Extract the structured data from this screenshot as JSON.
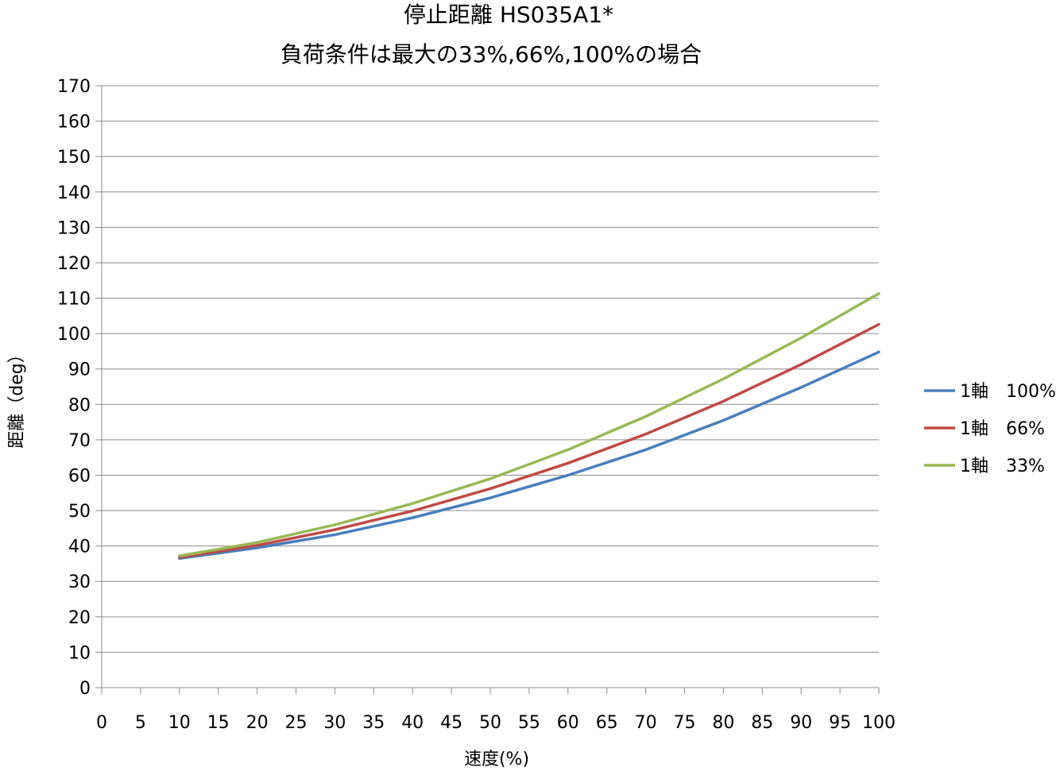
{
  "chart_data": {
    "type": "line",
    "title": "停止距離 HS035A1*",
    "subtitle": "負荷条件は最大の33%,66%,100%の場合",
    "xlabel": "速度(%)",
    "ylabel": "距離（deg）",
    "xlim": [
      0,
      100
    ],
    "ylim": [
      0,
      170
    ],
    "x_ticks": [
      0,
      5,
      10,
      15,
      20,
      25,
      30,
      35,
      40,
      45,
      50,
      55,
      60,
      65,
      70,
      75,
      80,
      85,
      90,
      95,
      100
    ],
    "y_ticks": [
      0,
      10,
      20,
      30,
      40,
      50,
      60,
      70,
      80,
      90,
      100,
      110,
      120,
      130,
      140,
      150,
      160,
      170
    ],
    "grid": "horizontal",
    "legend_position": "right",
    "x": [
      10,
      20,
      30,
      40,
      50,
      60,
      70,
      80,
      90,
      100
    ],
    "series": [
      {
        "name": "1軸　100%",
        "color": "#4a7ebb",
        "values": [
          36.5,
          39.5,
          43.2,
          48.0,
          53.6,
          60.0,
          67.2,
          75.5,
          84.8,
          94.8
        ]
      },
      {
        "name": "1軸　66%",
        "color": "#be4b48",
        "values": [
          36.8,
          40.2,
          44.6,
          49.9,
          56.2,
          63.4,
          71.6,
          80.9,
          91.3,
          102.6
        ]
      },
      {
        "name": "1軸　33%",
        "color": "#98b954",
        "values": [
          37.2,
          41.0,
          46.0,
          52.0,
          59.0,
          67.2,
          76.6,
          87.2,
          98.8,
          111.3
        ]
      }
    ]
  }
}
